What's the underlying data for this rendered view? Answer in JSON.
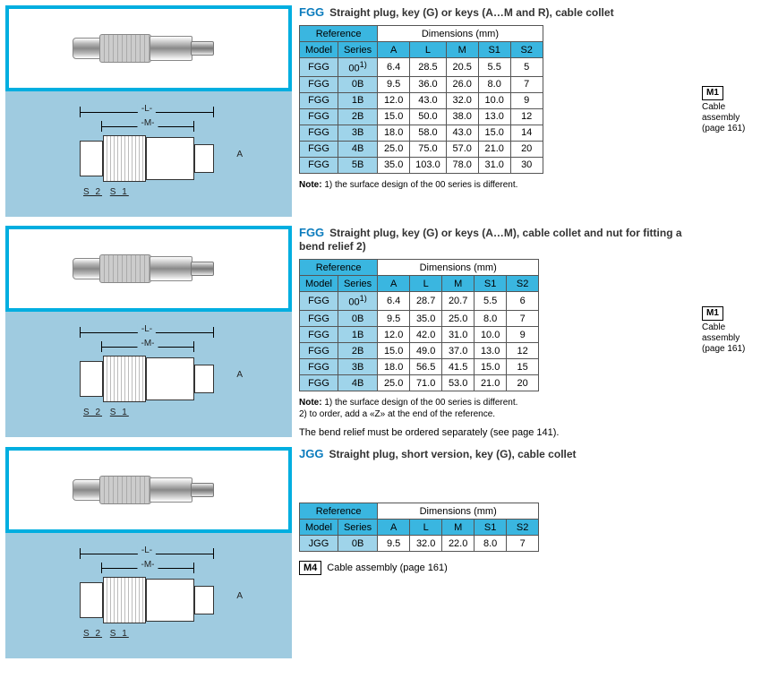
{
  "colors": {
    "accent": "#00aee0",
    "table_header": "#3ab6e0",
    "ref_cell": "#9fd4ea",
    "drawing_bg": "#9fcbe0",
    "text": "#000000",
    "code": "#0a7bbd"
  },
  "diagram_labels": {
    "L": "L",
    "M": "M",
    "A": "A",
    "S1": "S 1",
    "S2": "S 2"
  },
  "sections": [
    {
      "code": "FGG",
      "title": "Straight plug, key (G) or keys (A…M and R), cable collet",
      "table": {
        "ref_header": "Reference",
        "dim_header": "Dimensions (mm)",
        "col_model": "Model",
        "col_series": "Series",
        "dim_cols": [
          "A",
          "L",
          "M",
          "S1",
          "S2"
        ],
        "rows": [
          {
            "model": "FGG",
            "series": "00",
            "series_note": "1)",
            "A": "6.4",
            "L": "28.5",
            "M": "20.5",
            "S1": "5.5",
            "S2": "5"
          },
          {
            "model": "FGG",
            "series": "0B",
            "A": "9.5",
            "L": "36.0",
            "M": "26.0",
            "S1": "8.0",
            "S2": "7"
          },
          {
            "model": "FGG",
            "series": "1B",
            "A": "12.0",
            "L": "43.0",
            "M": "32.0",
            "S1": "10.0",
            "S2": "9"
          },
          {
            "model": "FGG",
            "series": "2B",
            "A": "15.0",
            "L": "50.0",
            "M": "38.0",
            "S1": "13.0",
            "S2": "12"
          },
          {
            "model": "FGG",
            "series": "3B",
            "A": "18.0",
            "L": "58.0",
            "M": "43.0",
            "S1": "15.0",
            "S2": "14"
          },
          {
            "model": "FGG",
            "series": "4B",
            "A": "25.0",
            "L": "75.0",
            "M": "57.0",
            "S1": "21.0",
            "S2": "20"
          },
          {
            "model": "FGG",
            "series": "5B",
            "A": "35.0",
            "L": "103.0",
            "M": "78.0",
            "S1": "31.0",
            "S2": "30"
          }
        ]
      },
      "note_label": "Note:",
      "note_text": " 1) the surface design of the 00 series is different.",
      "side": {
        "tag": "M1",
        "text": "Cable assembly (page 161)"
      }
    },
    {
      "code": "FGG",
      "title": "Straight plug, key (G) or keys (A…M), cable collet and nut for fitting a bend relief 2)",
      "table": {
        "ref_header": "Reference",
        "dim_header": "Dimensions (mm)",
        "col_model": "Model",
        "col_series": "Series",
        "dim_cols": [
          "A",
          "L",
          "M",
          "S1",
          "S2"
        ],
        "rows": [
          {
            "model": "FGG",
            "series": "00",
            "series_note": "1)",
            "A": "6.4",
            "L": "28.7",
            "M": "20.7",
            "S1": "5.5",
            "S2": "6"
          },
          {
            "model": "FGG",
            "series": "0B",
            "A": "9.5",
            "L": "35.0",
            "M": "25.0",
            "S1": "8.0",
            "S2": "7"
          },
          {
            "model": "FGG",
            "series": "1B",
            "A": "12.0",
            "L": "42.0",
            "M": "31.0",
            "S1": "10.0",
            "S2": "9"
          },
          {
            "model": "FGG",
            "series": "2B",
            "A": "15.0",
            "L": "49.0",
            "M": "37.0",
            "S1": "13.0",
            "S2": "12"
          },
          {
            "model": "FGG",
            "series": "3B",
            "A": "18.0",
            "L": "56.5",
            "M": "41.5",
            "S1": "15.0",
            "S2": "15"
          },
          {
            "model": "FGG",
            "series": "4B",
            "A": "25.0",
            "L": "71.0",
            "M": "53.0",
            "S1": "21.0",
            "S2": "20"
          }
        ]
      },
      "note_label": "Note:",
      "note_text": " 1) the surface design of the 00 series is different.\n       2) to order, add a «Z» at the end of the reference.",
      "extra_line": "The bend relief must be ordered separately (see page 141).",
      "side": {
        "tag": "M1",
        "text": "Cable assembly (page 161)"
      }
    },
    {
      "code": "JGG",
      "title": "Straight plug, short version, key (G), cable collet",
      "table": {
        "ref_header": "Reference",
        "dim_header": "Dimensions (mm)",
        "col_model": "Model",
        "col_series": "Series",
        "dim_cols": [
          "A",
          "L",
          "M",
          "S1",
          "S2"
        ],
        "rows": [
          {
            "model": "JGG",
            "series": "0B",
            "A": "9.5",
            "L": "32.0",
            "M": "22.0",
            "S1": "8.0",
            "S2": "7"
          }
        ]
      },
      "m4": {
        "tag": "M4",
        "text": "Cable assembly (page 161)"
      }
    }
  ]
}
